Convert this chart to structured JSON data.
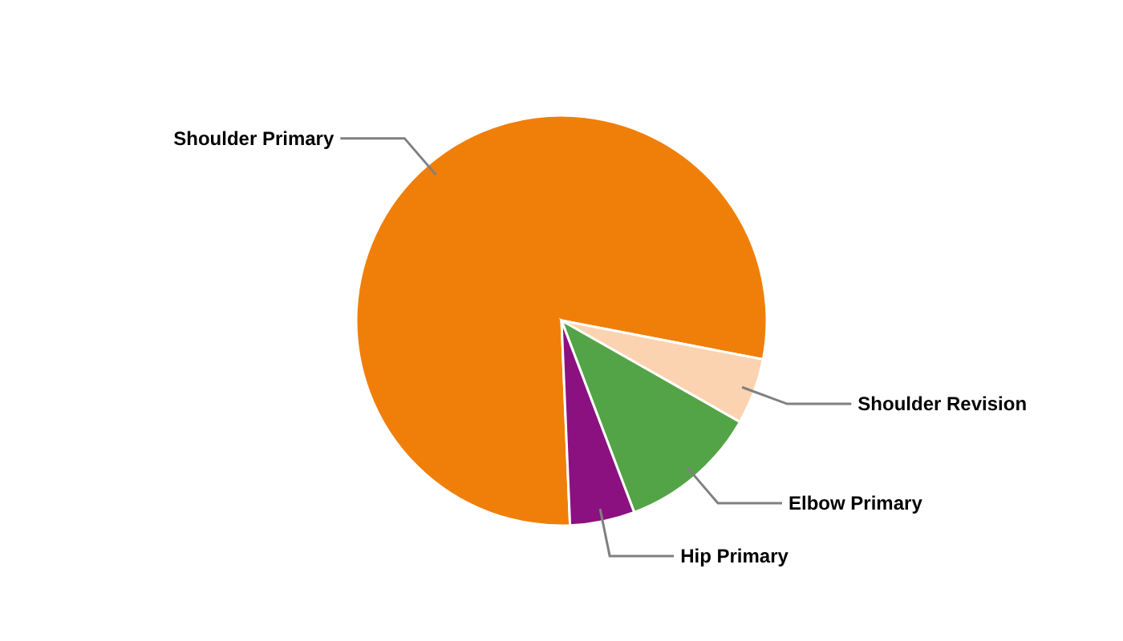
{
  "chart_data": {
    "type": "pie",
    "categories": [
      "Shoulder Primary",
      "Shoulder Revision",
      "Elbow Primary",
      "Hip Primary"
    ],
    "values": [
      78.7,
      5.2,
      11.0,
      5.1
    ],
    "colors": [
      "#f07f09",
      "#fcd3b0",
      "#53a446",
      "#8b1180"
    ]
  }
}
